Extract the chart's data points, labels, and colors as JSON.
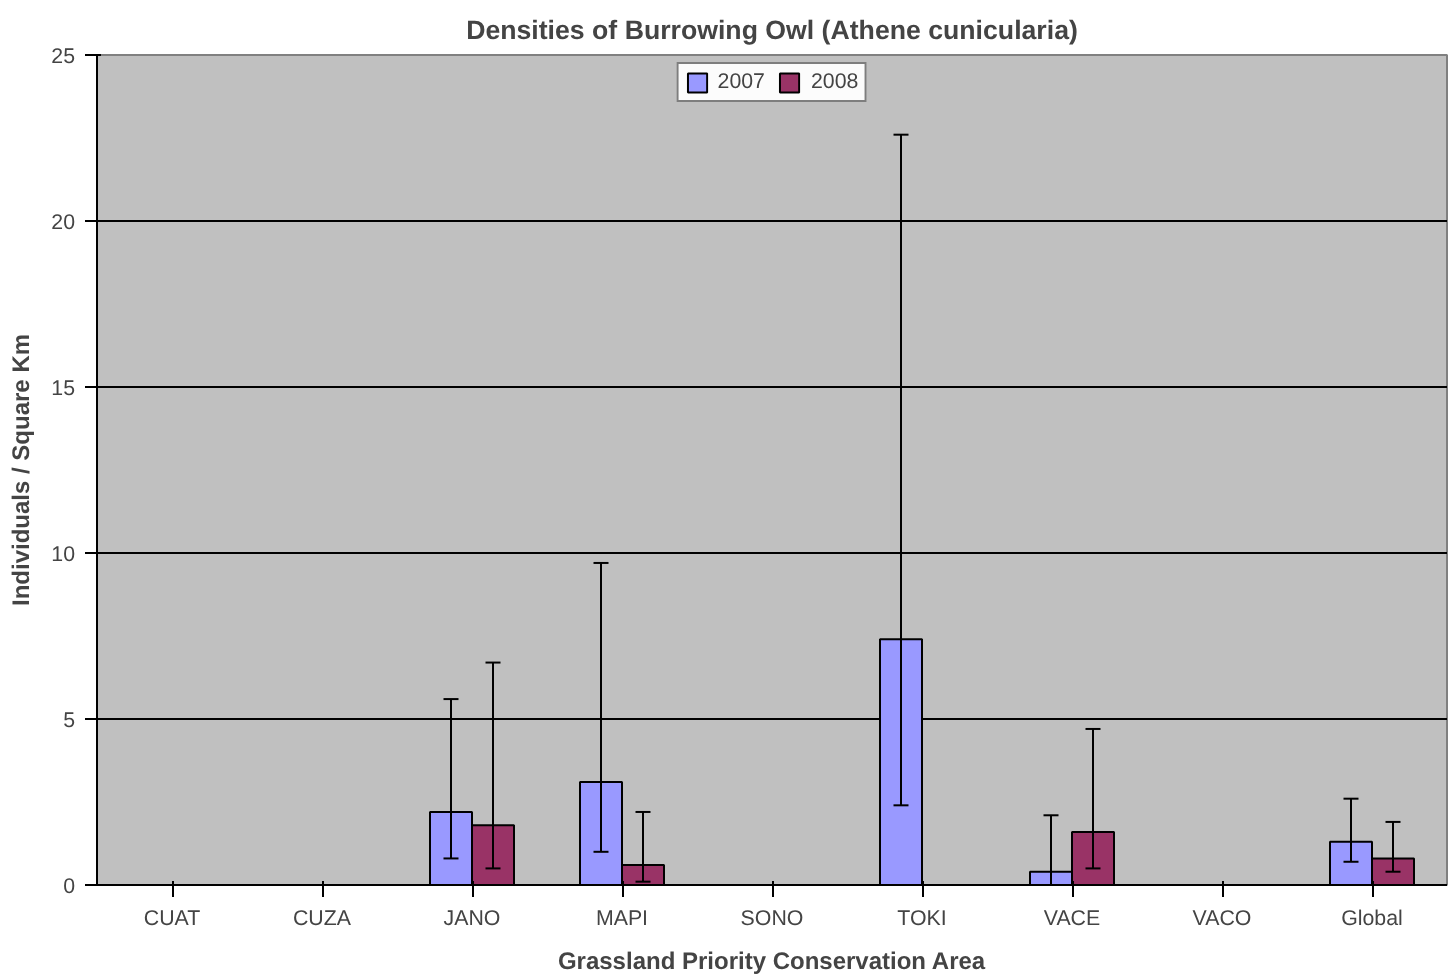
{
  "chart_data": {
    "type": "bar",
    "title": "Densities of Burrowing Owl (Athene cunicularia)",
    "xlabel": "Grassland Priority Conservation Area",
    "ylabel": "Individuals / Square Km",
    "categories": [
      "CUAT",
      "CUZA",
      "JANO",
      "MAPI",
      "SONO",
      "TOKI",
      "VACE",
      "VACO",
      "Global"
    ],
    "series": [
      {
        "name": "2007",
        "color": "#9999ff",
        "values": [
          null,
          null,
          2.2,
          3.1,
          null,
          7.4,
          0.4,
          null,
          1.3
        ],
        "errors": [
          null,
          null,
          [
            0.8,
            5.6
          ],
          [
            1.0,
            9.7
          ],
          null,
          [
            2.4,
            22.6
          ],
          [
            0.0,
            2.1
          ],
          null,
          [
            0.7,
            2.6
          ]
        ]
      },
      {
        "name": "2008",
        "color": "#993366",
        "values": [
          null,
          null,
          1.8,
          0.6,
          null,
          null,
          1.6,
          null,
          0.8
        ],
        "errors": [
          null,
          null,
          [
            0.5,
            6.7
          ],
          [
            0.1,
            2.2
          ],
          null,
          null,
          [
            0.5,
            4.7
          ],
          null,
          [
            0.4,
            1.9
          ]
        ]
      }
    ],
    "ylim": [
      0,
      25
    ],
    "yticks": [
      0,
      5,
      10,
      15,
      20,
      25
    ],
    "grid": "y",
    "legend": "top"
  }
}
